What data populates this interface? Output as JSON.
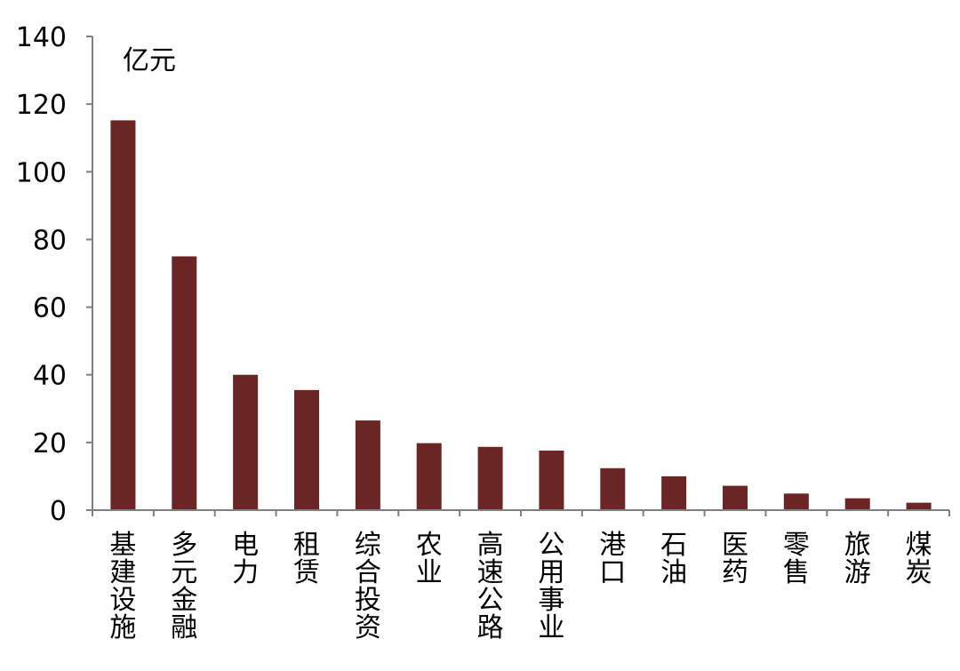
{
  "chart_data": {
    "type": "bar",
    "unit_label": "亿元",
    "categories": [
      "基建设施",
      "多元金融",
      "电力",
      "租赁",
      "综合投资",
      "农业",
      "高速公路",
      "公用事业",
      "港口",
      "石油",
      "医药",
      "零售",
      "旅游",
      "煤炭"
    ],
    "values": [
      115.2,
      75,
      40,
      35.5,
      26.5,
      19.8,
      18.7,
      17.6,
      12.4,
      10,
      7.2,
      4.9,
      3.5,
      2.2
    ],
    "ylim": [
      0,
      140
    ],
    "yticks": [
      0,
      20,
      40,
      60,
      80,
      100,
      120,
      140
    ],
    "grid": false,
    "legend": "none",
    "colors": {
      "bar": "#6b2525",
      "axis": "#7f7f7f"
    }
  }
}
